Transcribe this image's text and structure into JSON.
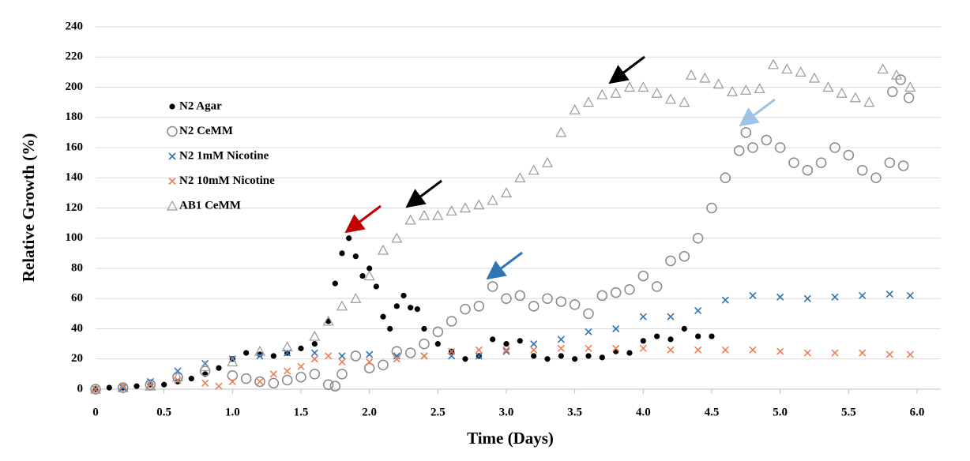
{
  "chart_data": {
    "type": "scatter",
    "x_label": "Time (Days)",
    "y_label": "Relative Growth (%)",
    "xlim": [
      0,
      6
    ],
    "ylim": [
      0,
      240
    ],
    "xticks": [
      0,
      0.5,
      {
        "value": 1,
        "label": "1.0"
      },
      1.5,
      {
        "value": 2,
        "label": "2.0"
      },
      2.5,
      {
        "value": 3,
        "label": "3.0"
      },
      3.5,
      {
        "value": 4,
        "label": "4.0"
      },
      4.5,
      {
        "value": 5,
        "label": "5.0"
      },
      5.5,
      {
        "value": 6,
        "label": "6.0"
      }
    ],
    "yticks": [
      0,
      20,
      40,
      60,
      80,
      100,
      120,
      140,
      160,
      180,
      200,
      220,
      240
    ],
    "grid": true,
    "series": [
      {
        "name": "N2 Agar",
        "color": "#000000",
        "marker": "dot",
        "x": [
          0,
          0.1,
          0.2,
          0.3,
          0.4,
          0.5,
          0.6,
          0.7,
          0.8,
          0.9,
          1.0,
          1.1,
          1.2,
          1.3,
          1.4,
          1.5,
          1.6,
          1.7,
          1.75,
          1.8,
          1.85,
          1.9,
          1.95,
          2.0,
          2.05,
          2.1,
          2.15,
          2.2,
          2.25,
          2.3,
          2.35,
          2.4,
          2.5,
          2.6,
          2.7,
          2.8,
          2.9,
          3.0,
          3.1,
          3.2,
          3.3,
          3.4,
          3.5,
          3.6,
          3.7,
          3.8,
          3.9,
          4.0,
          4.1,
          4.2,
          4.3,
          4.4,
          4.5
        ],
        "values": [
          0,
          1,
          1,
          2,
          3,
          3,
          5,
          7,
          10,
          14,
          20,
          24,
          23,
          22,
          24,
          27,
          30,
          45,
          70,
          90,
          100,
          88,
          75,
          80,
          68,
          48,
          40,
          55,
          62,
          54,
          53,
          40,
          30,
          25,
          20,
          22,
          33,
          30,
          32,
          22,
          20,
          22,
          20,
          22,
          21,
          25,
          24,
          32,
          35,
          33,
          40,
          35,
          35
        ]
      },
      {
        "name": "N2 CeMM",
        "color": "#888888",
        "marker": "circle",
        "x": [
          0,
          0.2,
          0.4,
          0.6,
          0.8,
          1.0,
          1.1,
          1.2,
          1.3,
          1.4,
          1.5,
          1.6,
          1.7,
          1.75,
          1.8,
          1.9,
          2.0,
          2.1,
          2.2,
          2.3,
          2.4,
          2.5,
          2.6,
          2.7,
          2.8,
          2.9,
          3.0,
          3.1,
          3.2,
          3.3,
          3.4,
          3.5,
          3.6,
          3.7,
          3.8,
          3.9,
          4.0,
          4.1,
          4.2,
          4.3,
          4.4,
          4.5,
          4.6,
          4.7,
          4.75,
          4.8,
          4.9,
          5.0,
          5.1,
          5.2,
          5.3,
          5.4,
          5.5,
          5.6,
          5.7,
          5.8,
          5.82,
          5.88,
          5.9,
          5.94
        ],
        "values": [
          0,
          1,
          3,
          8,
          12,
          9,
          7,
          5,
          4,
          6,
          8,
          10,
          3,
          2,
          10,
          22,
          14,
          16,
          25,
          24,
          30,
          38,
          45,
          53,
          55,
          68,
          60,
          62,
          55,
          60,
          58,
          56,
          50,
          62,
          64,
          66,
          75,
          68,
          85,
          88,
          100,
          120,
          140,
          158,
          170,
          160,
          165,
          160,
          150,
          145,
          150,
          160,
          155,
          145,
          140,
          150,
          197,
          205,
          148,
          193
        ]
      },
      {
        "name": "N2 1mM Nicotine",
        "color": "#2e75b6",
        "marker": "cross",
        "x": [
          0,
          0.2,
          0.4,
          0.6,
          0.8,
          1.0,
          1.2,
          1.4,
          1.6,
          1.8,
          2.0,
          2.2,
          2.4,
          2.6,
          2.8,
          3.0,
          3.2,
          3.4,
          3.6,
          3.8,
          4.0,
          4.2,
          4.4,
          4.6,
          4.8,
          5.0,
          5.2,
          5.4,
          5.6,
          5.8,
          5.95
        ],
        "values": [
          0,
          1,
          5,
          12,
          17,
          20,
          22,
          24,
          24,
          22,
          23,
          22,
          22,
          22,
          22,
          25,
          30,
          33,
          38,
          40,
          48,
          48,
          52,
          59,
          62,
          61,
          60,
          61,
          62,
          63,
          62
        ]
      },
      {
        "name": "N2 10mM Nicotine",
        "color": "#ee7d55",
        "marker": "cross",
        "x": [
          0,
          0.2,
          0.4,
          0.6,
          0.8,
          0.9,
          1.0,
          1.2,
          1.3,
          1.4,
          1.5,
          1.6,
          1.7,
          1.8,
          2.0,
          2.2,
          2.4,
          2.6,
          2.8,
          3.0,
          3.2,
          3.4,
          3.6,
          3.8,
          4.0,
          4.2,
          4.4,
          4.6,
          4.8,
          5.0,
          5.2,
          5.4,
          5.6,
          5.8,
          5.95
        ],
        "values": [
          0,
          2,
          3,
          6,
          4,
          2,
          5,
          5,
          10,
          12,
          15,
          20,
          22,
          18,
          18,
          20,
          22,
          25,
          26,
          26,
          26,
          27,
          27,
          27,
          27,
          26,
          26,
          26,
          26,
          25,
          24,
          24,
          24,
          23,
          23
        ]
      },
      {
        "name": "AB1 CeMM",
        "color": "#999999",
        "marker": "triangle",
        "x": [
          0,
          0.2,
          0.4,
          0.6,
          0.8,
          1.0,
          1.2,
          1.4,
          1.6,
          1.7,
          1.8,
          1.9,
          2.0,
          2.1,
          2.2,
          2.3,
          2.4,
          2.5,
          2.6,
          2.7,
          2.8,
          2.9,
          3.0,
          3.1,
          3.2,
          3.3,
          3.4,
          3.5,
          3.6,
          3.7,
          3.8,
          3.9,
          4.0,
          4.1,
          4.2,
          4.3,
          4.35,
          4.45,
          4.55,
          4.65,
          4.75,
          4.85,
          4.95,
          5.05,
          5.15,
          5.25,
          5.35,
          5.45,
          5.55,
          5.65,
          5.75,
          5.85,
          5.95
        ],
        "values": [
          0,
          1,
          2,
          8,
          15,
          18,
          25,
          28,
          35,
          45,
          55,
          60,
          75,
          92,
          100,
          112,
          115,
          115,
          118,
          120,
          122,
          125,
          130,
          140,
          145,
          150,
          170,
          185,
          190,
          195,
          196,
          200,
          200,
          196,
          192,
          190,
          208,
          206,
          202,
          197,
          198,
          199,
          215,
          212,
          210,
          206,
          200,
          196,
          193,
          190,
          212,
          208,
          200
        ]
      }
    ]
  }
}
